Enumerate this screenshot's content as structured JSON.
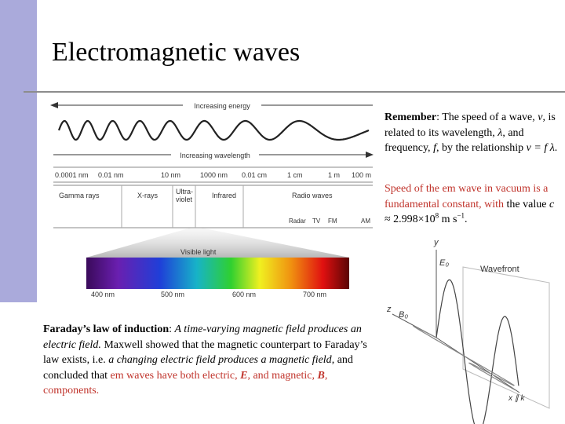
{
  "title": "Electromagnetic waves",
  "spectrum": {
    "energy_arrow": "Increasing energy",
    "wavelength_arrow": "Increasing wavelength",
    "wavelength_ticks": [
      "0.0001 nm",
      "0.01 nm",
      "10 nm",
      "1000 nm",
      "0.01 cm",
      "1 cm",
      "1 m",
      "100 m"
    ],
    "bands": [
      "Gamma rays",
      "X-rays",
      "Ultra-",
      "violet",
      "Infrared",
      "Radio waves"
    ],
    "radio_bands": [
      "Radar",
      "TV",
      "FM",
      "AM"
    ],
    "visible_label": "Visible light",
    "visible_ticks": [
      "400 nm",
      "500 nm",
      "600 nm",
      "700 nm"
    ]
  },
  "wave_diagram": {
    "y_axis": "y",
    "e_field": "E₀",
    "wavefront": "Wavefront",
    "z_axis": "z",
    "b_field": "B₀",
    "x_axis": "x ∥ k"
  },
  "paragraphs": [
    {
      "runs": [
        {
          "text": "Remember",
          "style": "bold"
        },
        {
          "text": ": The speed of a wave, ",
          "style": "plain"
        },
        {
          "text": "v",
          "style": "italic"
        },
        {
          "text": ", is related to its wavelength, ",
          "style": "plain"
        },
        {
          "text": "λ",
          "style": "italic"
        },
        {
          "text": ", and frequency, ",
          "style": "plain"
        },
        {
          "text": "f",
          "style": "italic"
        },
        {
          "text": ", by the relationship ",
          "style": "plain"
        },
        {
          "text": "v = f λ",
          "style": "italic"
        },
        {
          "text": ".",
          "style": "plain"
        }
      ]
    },
    {
      "runs": [
        {
          "text": "Speed of the em wave in vacuum is a fundamental constant, with ",
          "style": "red"
        },
        {
          "text": "the value ",
          "style": "plain"
        },
        {
          "text": "c",
          "style": "italic"
        },
        {
          "text": " ≈ 2.998×10",
          "style": "plain"
        },
        {
          "text": "8",
          "style": "sup"
        },
        {
          "text": " m s",
          "style": "plain"
        },
        {
          "text": "−1",
          "style": "sup"
        },
        {
          "text": ".",
          "style": "plain"
        }
      ]
    },
    {
      "runs": [
        {
          "text": "Faraday’s law of induction",
          "style": "bold"
        },
        {
          "text": ": ",
          "style": "plain"
        },
        {
          "text": "A time-varying magnetic field produces an electric field.",
          "style": "italic"
        },
        {
          "text": " Maxwell showed that the magnetic counterpart to Faraday’s law exists, i.e. ",
          "style": "plain"
        },
        {
          "text": "a changing electric field produces a magnetic field",
          "style": "italic"
        },
        {
          "text": ", and concluded that ",
          "style": "plain"
        },
        {
          "text": "em waves have both electric, ",
          "style": "red"
        },
        {
          "text": "E",
          "style": "red-bold-italic"
        },
        {
          "text": ", and magnetic, ",
          "style": "red"
        },
        {
          "text": "B",
          "style": "red-bold-italic"
        },
        {
          "text": ", components.",
          "style": "red"
        }
      ]
    }
  ]
}
